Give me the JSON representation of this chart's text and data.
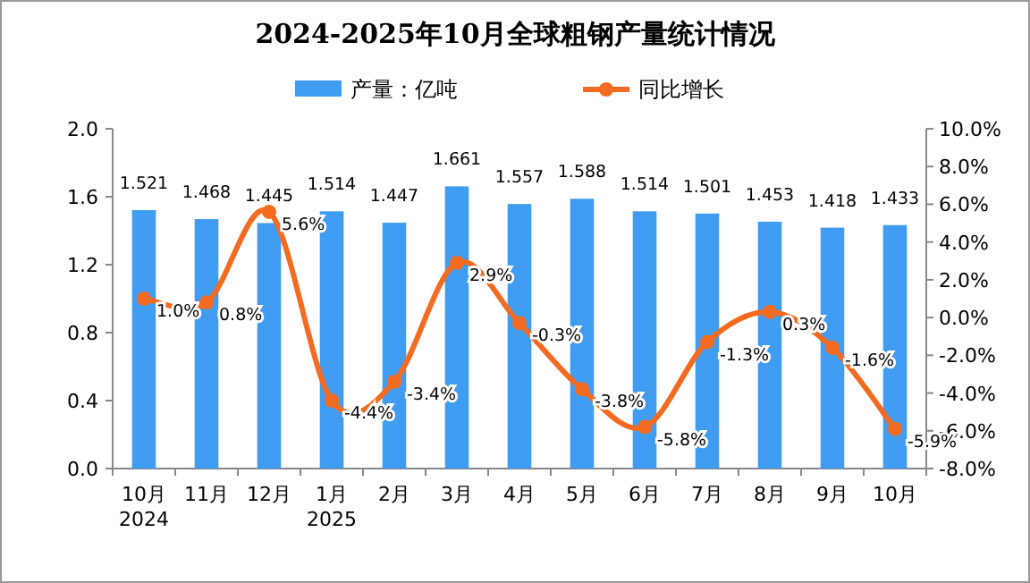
{
  "chart_data": {
    "type": "bar",
    "title": "2024-2025年10月全球粗钢产量统计情况",
    "categories": [
      "10月\n2024",
      "11月",
      "12月",
      "1月\n2025",
      "2月",
      "3月",
      "4月",
      "5月",
      "6月",
      "7月",
      "8月",
      "9月",
      "10月"
    ],
    "series": [
      {
        "name": "产量：亿吨",
        "color": "#3f9cf0",
        "values": [
          1.521,
          1.468,
          1.445,
          1.514,
          1.447,
          1.661,
          1.557,
          1.588,
          1.514,
          1.501,
          1.453,
          1.418,
          1.433
        ],
        "value_labels": [
          "1.521",
          "1.468",
          "1.445",
          "1.514",
          "1.447",
          "1.661",
          "1.557",
          "1.588",
          "1.514",
          "1.501",
          "1.453",
          "1.418",
          "1.433"
        ]
      },
      {
        "name": "同比增长",
        "type": "line",
        "axis": "y2",
        "color": "#f26b21",
        "marker": "circle",
        "values": [
          1.0,
          0.8,
          5.6,
          -4.4,
          -3.4,
          2.9,
          -0.3,
          -3.8,
          -5.8,
          -1.3,
          0.3,
          -1.6,
          -5.9
        ],
        "value_labels": [
          "1.0%",
          "0.8%",
          "5.6%",
          "-4.4%",
          "-3.4%",
          "2.9%",
          "-0.3%",
          "-3.8%",
          "-5.8%",
          "-1.3%",
          "0.3%",
          "-1.6%",
          "-5.9%"
        ]
      }
    ],
    "ylim": [
      0,
      2.0
    ],
    "yticks": [
      {
        "value": 0,
        "label": "0.0"
      },
      {
        "value": 0.4,
        "label": "0.4"
      },
      {
        "value": 0.8,
        "label": "0.8"
      },
      {
        "value": 1.2,
        "label": "1.2"
      },
      {
        "value": 1.6,
        "label": "1.6"
      },
      {
        "value": 2.0,
        "label": "2.0"
      }
    ],
    "y2lim": [
      -8,
      10
    ],
    "y2ticks": [
      {
        "value": -8,
        "label": "-8.0%"
      },
      {
        "value": -6,
        "label": "-6.0%"
      },
      {
        "value": -4,
        "label": "-4.0%"
      },
      {
        "value": -2,
        "label": "-2.0%"
      },
      {
        "value": 0,
        "label": "0.0%"
      },
      {
        "value": 2,
        "label": "2.0%"
      },
      {
        "value": 4,
        "label": "4.0%"
      },
      {
        "value": 6,
        "label": "6.0%"
      },
      {
        "value": 8,
        "label": "8.0%"
      },
      {
        "value": 10,
        "label": "10.0%"
      }
    ],
    "legend": "top",
    "grid": false
  }
}
